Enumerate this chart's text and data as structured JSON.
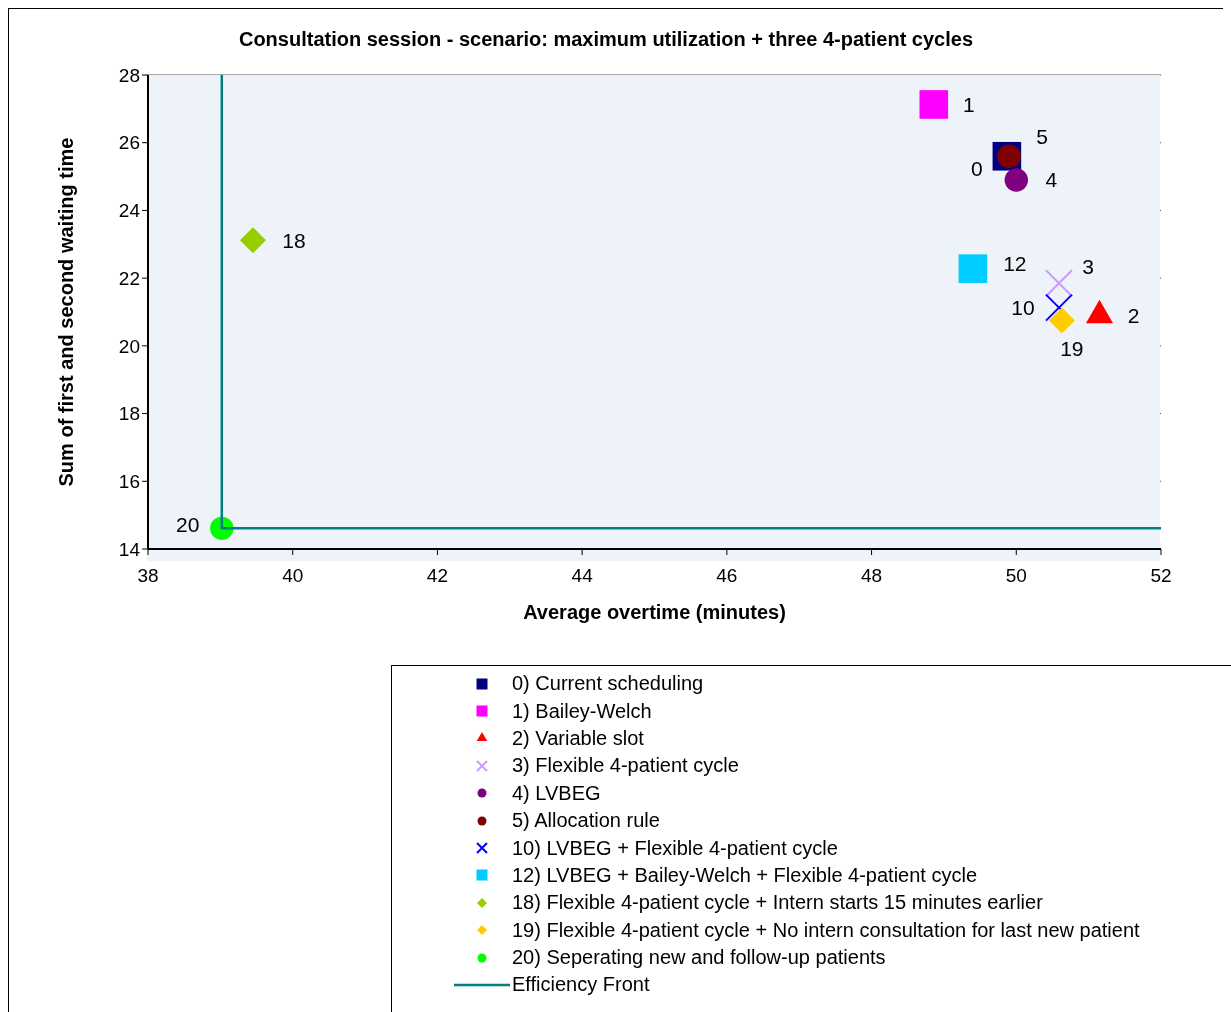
{
  "chart_data": {
    "type": "scatter",
    "title": "Consultation session - scenario: maximum utilization + three 4-patient cycles",
    "xlabel": "Average overtime (minutes)",
    "ylabel": "Sum of first and second waiting time",
    "xlim": [
      38,
      52
    ],
    "xticks": [
      38,
      40,
      42,
      44,
      46,
      48,
      50,
      52
    ],
    "ylim": [
      14,
      28
    ],
    "yticks": [
      14,
      16,
      18,
      20,
      22,
      24,
      26,
      28
    ],
    "grid": "y",
    "legend": "bottom",
    "series": [
      {
        "name": "0) Current scheduling",
        "color": "#000080",
        "marker": "square",
        "x": [
          49.87
        ],
        "values": [
          25.6
        ]
      },
      {
        "name": "1) Bailey-Welch",
        "color": "#ff00ff",
        "marker": "square",
        "x": [
          48.86
        ],
        "values": [
          27.13
        ]
      },
      {
        "name": "2) Variable slot",
        "color": "#ff0000",
        "marker": "triangle",
        "x": [
          51.15
        ],
        "values": [
          20.9
        ]
      },
      {
        "name": "3) Flexible 4-patient cycle",
        "color": "#cc99ff",
        "marker": "cross",
        "x": [
          50.59
        ],
        "values": [
          21.85
        ]
      },
      {
        "name": "4) LVBEG",
        "color": "#800080",
        "marker": "circle",
        "x": [
          50.0
        ],
        "values": [
          24.9
        ]
      },
      {
        "name": "5) Allocation rule",
        "color": "#800000",
        "marker": "circle",
        "x": [
          49.9
        ],
        "values": [
          25.6
        ]
      },
      {
        "name": "10) LVBEG + Flexible 4-patient cycle",
        "color": "#0000ff",
        "marker": "cross",
        "x": [
          50.59
        ],
        "values": [
          21.13
        ]
      },
      {
        "name": "12) LVBEG + Bailey-Welch + Flexible 4-patient cycle",
        "color": "#00ccff",
        "marker": "square",
        "x": [
          49.4
        ],
        "values": [
          22.28
        ]
      },
      {
        "name": "18) Flexible 4-patient cycle + Intern starts 15 minutes earlier",
        "color": "#99cc00",
        "marker": "diamond",
        "x": [
          39.45
        ],
        "values": [
          23.12
        ]
      },
      {
        "name": "19) Flexible 4-patient cycle + No intern consultation for last new patient",
        "color": "#ffcc00",
        "marker": "diamond",
        "x": [
          50.63
        ],
        "values": [
          20.75
        ]
      },
      {
        "name": "20) Seperating new and follow-up patients",
        "color": "#00ff00",
        "marker": "circle",
        "x": [
          39.02
        ],
        "values": [
          14.61
        ]
      },
      {
        "name": "Efficiency Front",
        "type": "line",
        "color": "#008080",
        "marker": "none",
        "line_style": "solid",
        "x": [
          39.02,
          39.02,
          52
        ],
        "values": [
          28,
          14.61,
          14.61
        ]
      }
    ],
    "annotations": [
      {
        "text": "0",
        "x": 49.87,
        "y": 25.6
      },
      {
        "text": "1",
        "x": 48.86,
        "y": 27.13
      },
      {
        "text": "2",
        "x": 51.15,
        "y": 20.9
      },
      {
        "text": "3",
        "x": 50.59,
        "y": 21.85
      },
      {
        "text": "4",
        "x": 50.0,
        "y": 24.9
      },
      {
        "text": "5",
        "x": 49.9,
        "y": 25.6
      },
      {
        "text": "10",
        "x": 50.59,
        "y": 21.13
      },
      {
        "text": "12",
        "x": 49.4,
        "y": 22.28
      },
      {
        "text": "18",
        "x": 39.45,
        "y": 23.12
      },
      {
        "text": "19",
        "x": 50.63,
        "y": 20.75
      },
      {
        "text": "20",
        "x": 39.02,
        "y": 14.61
      }
    ]
  }
}
